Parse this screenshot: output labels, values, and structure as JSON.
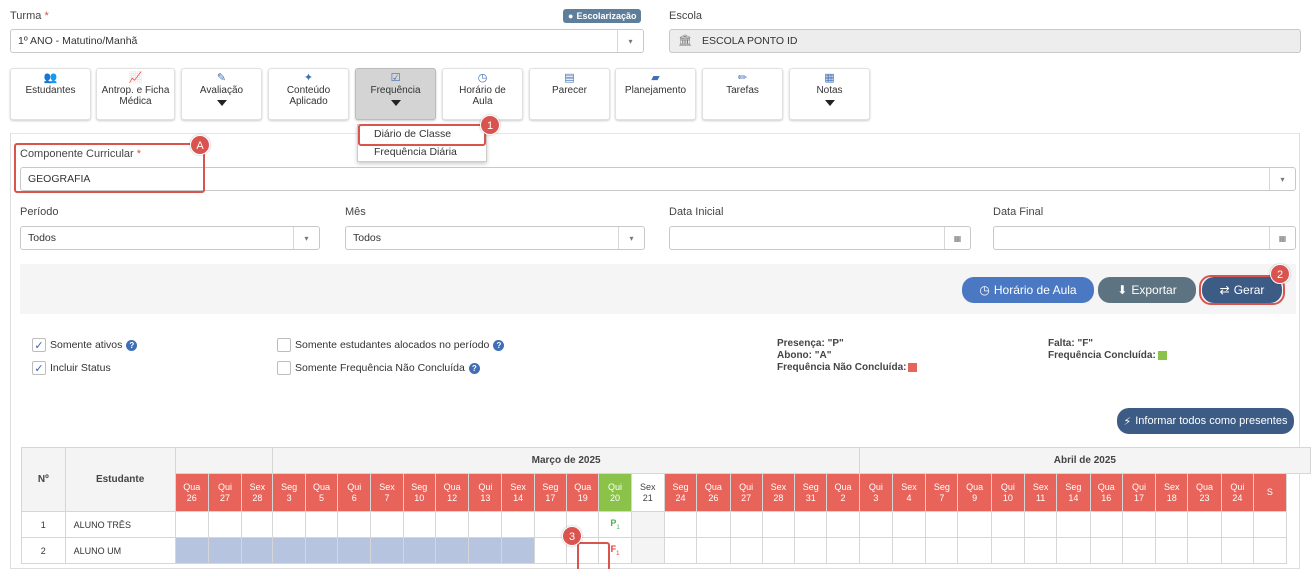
{
  "turma": {
    "label": "Turma",
    "required": "*",
    "value": "1º ANO - Matutino/Manhã",
    "badge": "Escolarização"
  },
  "escola": {
    "label": "Escola",
    "value": "ESCOLA PONTO ID"
  },
  "tiles": [
    {
      "label": "Estudantes",
      "icon": "users-icon"
    },
    {
      "label": "Antrop. e Ficha Médica",
      "icon": "chart-line-icon"
    },
    {
      "label": "Avaliação",
      "icon": "edit-icon"
    },
    {
      "label": "Conteúdo Aplicado",
      "icon": "magic-wand-icon"
    },
    {
      "label": "Frequência",
      "icon": "check-square-icon"
    },
    {
      "label": "Horário de Aula",
      "icon": "clock-icon"
    },
    {
      "label": "Parecer",
      "icon": "document-icon"
    },
    {
      "label": "Planejamento",
      "icon": "book-icon"
    },
    {
      "label": "Tarefas",
      "icon": "pencil-icon"
    },
    {
      "label": "Notas",
      "icon": "list-icon"
    }
  ],
  "frequencia_menu": [
    "Diário de Classe",
    "Frequência Diária"
  ],
  "componente": {
    "label": "Componente Curricular",
    "required": "*",
    "value": "GEOGRAFIA"
  },
  "filters": {
    "periodo_label": "Período",
    "periodo_value": "Todos",
    "mes_label": "Mês",
    "mes_value": "Todos",
    "data_inicial_label": "Data Inicial",
    "data_final_label": "Data Final"
  },
  "buttons": {
    "horario": "Horário de Aula",
    "exportar": "Exportar",
    "gerar": "Gerar",
    "informar": "Informar todos como presentes"
  },
  "checks": {
    "somente_ativos": "Somente ativos",
    "incluir_status": "Incluir Status",
    "somente_alocados": "Somente estudantes alocados no período",
    "somente_nao_concluida": "Somente Frequência Não Concluída"
  },
  "legend": {
    "presenca": "Presença: \"P\"",
    "abono": "Abono: \"A\"",
    "nao_concluida": "Frequência Não Concluída:",
    "falta": "Falta: \"F\"",
    "concluida": "Frequência Concluída:"
  },
  "colors": {
    "red": "#e8645a",
    "green": "#8bc34a",
    "blue_btn": "#4a78c2",
    "gray_btn": "#5d7381",
    "navy_btn": "#3c5c86"
  },
  "markers": {
    "a": "A",
    "one": "1",
    "two": "2",
    "three": "3"
  },
  "table": {
    "col_num": "Nº",
    "col_student": "Estudante",
    "month_march": "Março de 2025",
    "month_april": "Abril de 2025",
    "rows": [
      {
        "num": "1",
        "name": "ALUNO TRÊS",
        "mark": "P",
        "sub": "1"
      },
      {
        "num": "2",
        "name": "ALUNO UM",
        "mark": "F",
        "sub": "1"
      }
    ]
  }
}
